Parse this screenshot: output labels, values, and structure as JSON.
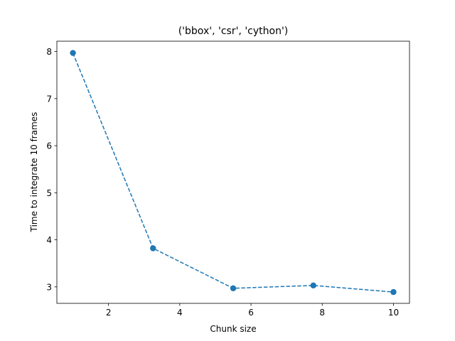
{
  "chart_data": {
    "type": "line",
    "title": "('bbox', 'csr', 'cython')",
    "xlabel": "Chunk size",
    "ylabel": "Time to integrate 10 frames",
    "xlim": [
      0.55,
      10.45
    ],
    "ylim": [
      2.65,
      8.22
    ],
    "xticks": [
      2,
      4,
      6,
      8,
      10
    ],
    "yticks": [
      3,
      4,
      5,
      6,
      7,
      8
    ],
    "grid": false,
    "line_style": "dashed",
    "marker": "circle",
    "color": "#1f77b4",
    "series": [
      {
        "x": [
          1.0,
          3.25,
          5.5,
          7.75,
          10.0
        ],
        "y": [
          7.97,
          3.82,
          2.97,
          3.03,
          2.89
        ]
      }
    ]
  }
}
